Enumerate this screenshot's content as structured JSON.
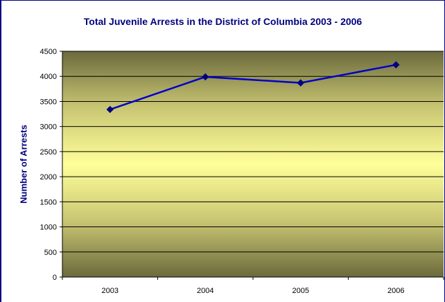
{
  "chart_data": {
    "type": "line",
    "title": "Total Juvenile Arrests in the District of Columbia 2003 - 2006",
    "xlabel": "",
    "ylabel": "Number of Arrests",
    "categories": [
      "2003",
      "2004",
      "2005",
      "2006"
    ],
    "series": [
      {
        "values": [
          3340,
          3990,
          3870,
          4230
        ],
        "color": "#0000cc"
      }
    ],
    "ylim": [
      0,
      4500
    ],
    "yticks": [
      0,
      500,
      1000,
      1500,
      2000,
      2500,
      3000,
      3500,
      4000,
      4500
    ],
    "grid": true,
    "marker": "diamond",
    "plot_background": "vertical gradient olive to pale yellow"
  }
}
